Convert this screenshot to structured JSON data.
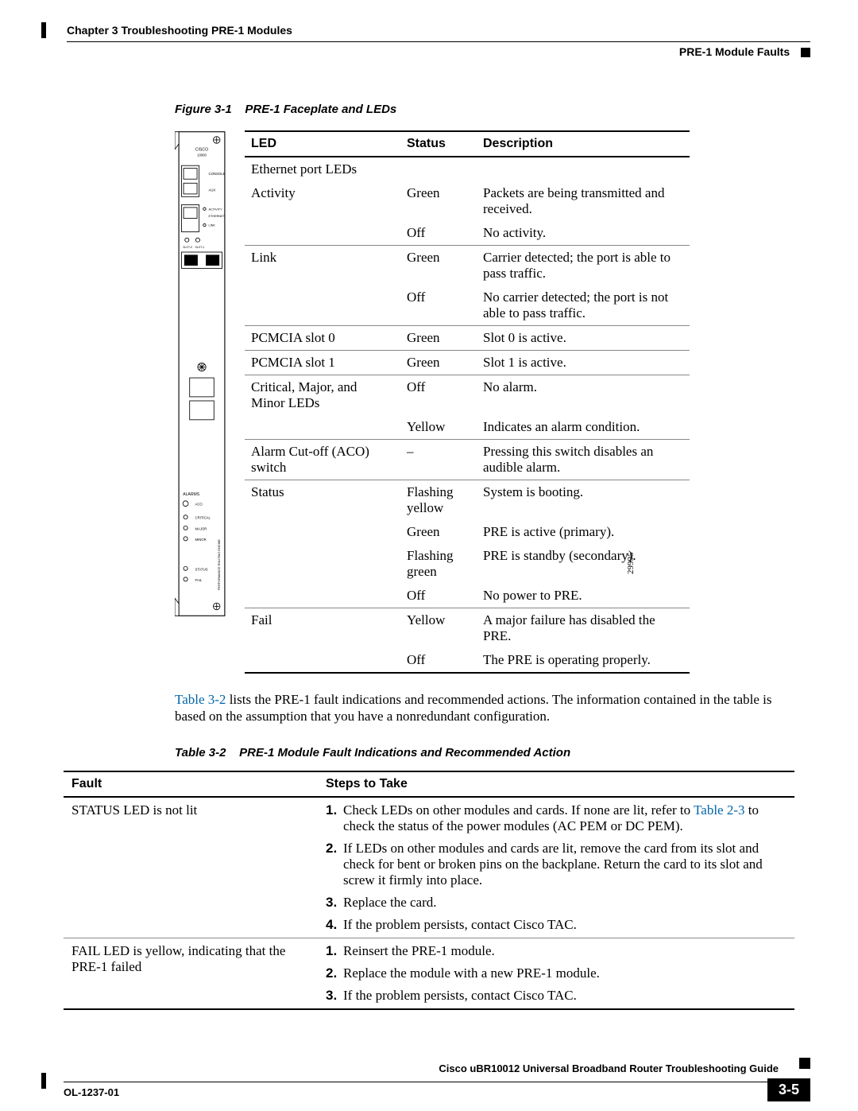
{
  "header": {
    "chapter": "Chapter 3    Troubleshooting PRE-1 Modules",
    "subsection": "PRE-1 Module Faults"
  },
  "figure": {
    "caption_label": "Figure 3-1",
    "caption_text": "PRE-1 Faceplate and LEDs",
    "diagram_id": "29995"
  },
  "led_table": {
    "headers": {
      "led": "LED",
      "status": "Status",
      "description": "Description"
    },
    "rows": [
      {
        "led": "Ethernet port LEDs",
        "status": "",
        "desc": "",
        "group": true
      },
      {
        "led": "Activity",
        "status": "Green",
        "desc": "Packets are being transmitted and received.",
        "sub": true
      },
      {
        "led": "",
        "status": "Off",
        "desc": "No activity.",
        "lastsub": true
      },
      {
        "led": "Link",
        "status": "Green",
        "desc": "Carrier detected; the port is able to pass traffic.",
        "sub": true
      },
      {
        "led": "",
        "status": "Off",
        "desc": "No carrier detected; the port is not able to pass traffic.",
        "lastsub": true
      },
      {
        "led": "PCMCIA slot 0",
        "status": "Green",
        "desc": "Slot 0 is active."
      },
      {
        "led": "PCMCIA slot 1",
        "status": "Green",
        "desc": "Slot 1 is active."
      },
      {
        "led": "Critical, Major, and Minor LEDs",
        "status": "Off",
        "desc": "No alarm.",
        "sub": true
      },
      {
        "led": "",
        "status": "Yellow",
        "desc": "Indicates an alarm condition.",
        "lastsub": true
      },
      {
        "led": "Alarm Cut-off (ACO) switch",
        "status": "–",
        "desc": "Pressing this switch disables an audible alarm."
      },
      {
        "led": "Status",
        "status": "Flashing yellow",
        "desc": "System is booting.",
        "sub": true
      },
      {
        "led": "",
        "status": "Green",
        "desc": "PRE is active (primary).",
        "sub": true
      },
      {
        "led": "",
        "status": "Flashing green",
        "desc": "PRE is standby (secondary).",
        "sub": true
      },
      {
        "led": "",
        "status": "Off",
        "desc": "No power to PRE.",
        "lastsub": true
      },
      {
        "led": "Fail",
        "status": "Yellow",
        "desc": "A major failure has disabled the PRE.",
        "sub": true
      },
      {
        "led": "",
        "status": "Off",
        "desc": "The PRE is operating properly.",
        "tablelast": true
      }
    ]
  },
  "para": {
    "ref": "Table 3-2",
    "text_after": " lists the PRE-1 fault indications and recommended actions. The information contained in the table is based on the assumption that you have a nonredundant configuration."
  },
  "table2": {
    "caption_label": "Table 3-2",
    "caption_text": "PRE-1 Module Fault Indications and Recommended Action",
    "headers": {
      "fault": "Fault",
      "steps": "Steps to Take"
    },
    "row1": {
      "fault": "STATUS LED is not lit",
      "s1a": "Check LEDs on other modules and cards. If none are lit, refer to ",
      "s1ref": "Table 2-3",
      "s1b": " to check the status of the power modules (AC PEM or DC PEM).",
      "s2": "If LEDs on other modules and cards are lit, remove the card from its slot and check for bent or broken pins on the backplane. Return the card to its slot and screw it firmly into place.",
      "s3": "Replace the card.",
      "s4": "If the problem persists, contact Cisco TAC."
    },
    "row2": {
      "fault": "FAIL LED is yellow, indicating that the PRE-1 failed",
      "s1": "Reinsert the PRE-1 module.",
      "s2": "Replace the module with a new PRE-1 module.",
      "s3": "If the problem persists, contact Cisco TAC."
    }
  },
  "footer": {
    "book": "Cisco uBR10012 Universal Broadband Router Troubleshooting Guide",
    "docnum": "OL-1237-01",
    "page": "3-5"
  },
  "nums": {
    "n1": "1.",
    "n2": "2.",
    "n3": "3.",
    "n4": "4."
  },
  "faceplate_labels": {
    "cisco": "CISCO",
    "model": "10000",
    "console": "CONSOLE",
    "aux": "AUX",
    "activity": "ACTIVITY",
    "ethernet": "ETHERNET",
    "link": "LINK",
    "slot0": "SLOT-0",
    "slot1": "SLOT-1",
    "alarms": "ALARMS",
    "aco": "ACO",
    "critical": "CRITICAL",
    "major": "MAJOR",
    "minor": "MINOR",
    "status": "STATUS",
    "fail": "FAIL",
    "side": "PERFORMANCE ROUTING ENGINE"
  }
}
